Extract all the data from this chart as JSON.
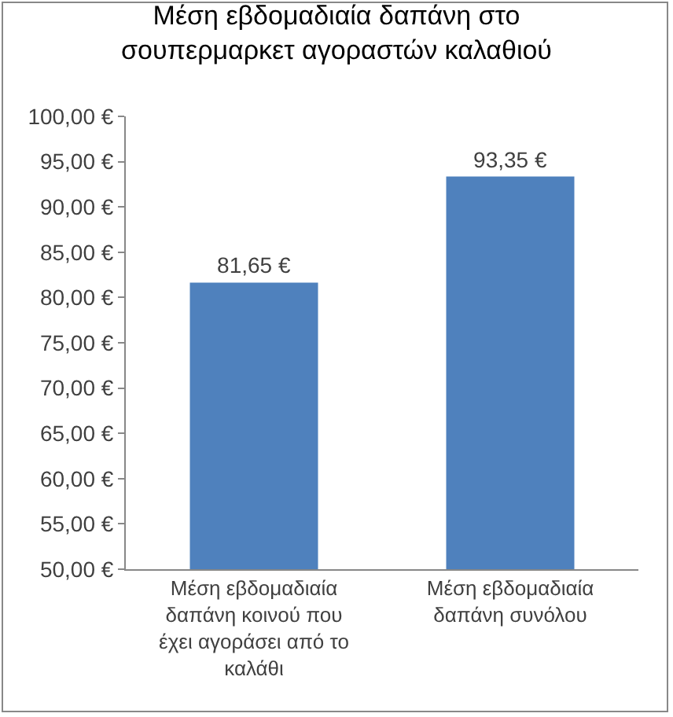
{
  "chart_data": {
    "type": "bar",
    "title": "Μέση εβδομαδιαία δαπάνη στο σουπερμαρκετ αγοραστών καλαθιού",
    "categories": [
      "Μέση εβδομαδιαία δαπάνη κοινού που έχει αγοράσει από το καλάθι",
      "Μέση εβδομαδιαία δαπάνη συνόλου"
    ],
    "values": [
      81.65,
      93.35
    ],
    "value_labels": [
      "81,65 €",
      "93,35 €"
    ],
    "color": "#4f81bd",
    "ylim": [
      50,
      100
    ],
    "yticks": [
      {
        "value": 50,
        "label": "50,00 €"
      },
      {
        "value": 55,
        "label": "55,00 €"
      },
      {
        "value": 60,
        "label": "60,00 €"
      },
      {
        "value": 65,
        "label": "65,00 €"
      },
      {
        "value": 70,
        "label": "70,00 €"
      },
      {
        "value": 75,
        "label": "75,00 €"
      },
      {
        "value": 80,
        "label": "80,00 €"
      },
      {
        "value": 85,
        "label": "85,00 €"
      },
      {
        "value": 90,
        "label": "90,00 €"
      },
      {
        "value": 95,
        "label": "95,00 €"
      },
      {
        "value": 100,
        "label": "100,00 €"
      }
    ],
    "grid": false,
    "legend": false
  }
}
